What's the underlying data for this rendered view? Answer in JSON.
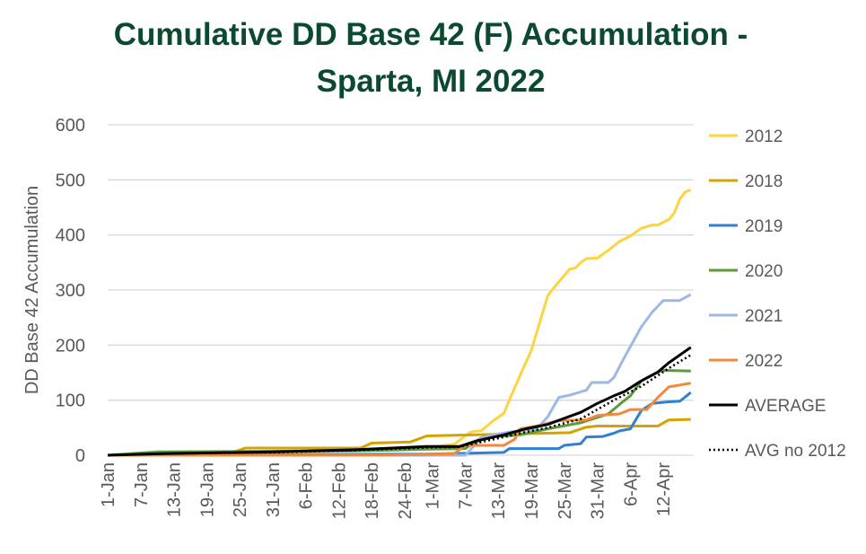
{
  "chart_data": {
    "type": "line",
    "title_lines": [
      "Cumulative DD Base 42 (F) Accumulation -",
      "Sparta, MI 2022"
    ],
    "xlabel": "",
    "ylabel": "DD Base 42 Accumulation",
    "ylim": [
      0,
      600
    ],
    "yticks": [
      "0",
      "100",
      "200",
      "300",
      "400",
      "500",
      "600"
    ],
    "xlim": [
      "1-Jan",
      "17-Apr"
    ],
    "xticks": [
      "1-Jan",
      "7-Jan",
      "13-Jan",
      "19-Jan",
      "25-Jan",
      "31-Jan",
      "6-Feb",
      "12-Feb",
      "18-Feb",
      "24-Feb",
      "1-Mar",
      "7-Mar",
      "13-Mar",
      "19-Mar",
      "25-Mar",
      "31-Mar",
      "6-Apr",
      "12-Apr"
    ],
    "grid": true,
    "legend": "right",
    "series": [
      {
        "name": "2012",
        "color": "#ffd23f",
        "dash": false,
        "points": [
          [
            "1-Jan",
            0
          ],
          [
            "31-Jan",
            5
          ],
          [
            "25-Feb",
            10
          ],
          [
            "5-Mar",
            20
          ],
          [
            "8-Mar",
            42
          ],
          [
            "10-Mar",
            45
          ],
          [
            "12-Mar",
            62
          ],
          [
            "14-Mar",
            76
          ],
          [
            "15-Mar",
            100
          ],
          [
            "17-Mar",
            146
          ],
          [
            "19-Mar",
            190
          ],
          [
            "22-Mar",
            290
          ],
          [
            "24-Mar",
            315
          ],
          [
            "26-Mar",
            338
          ],
          [
            "27-Mar",
            340
          ],
          [
            "28-Mar",
            350
          ],
          [
            "29-Mar",
            357
          ],
          [
            "31-Mar",
            358
          ],
          [
            "2-Apr",
            372
          ],
          [
            "4-Apr",
            388
          ],
          [
            "6-Apr",
            398
          ],
          [
            "8-Apr",
            412
          ],
          [
            "10-Apr",
            418
          ],
          [
            "11-Apr",
            418
          ],
          [
            "13-Apr",
            428
          ],
          [
            "14-Apr",
            440
          ],
          [
            "15-Apr",
            465
          ],
          [
            "16-Apr",
            478
          ],
          [
            "17-Apr",
            482
          ]
        ]
      },
      {
        "name": "2018",
        "color": "#d4a300",
        "dash": false,
        "points": [
          [
            "1-Jan",
            0
          ],
          [
            "8-Jan",
            2
          ],
          [
            "14-Jan",
            5
          ],
          [
            "24-Jan",
            6
          ],
          [
            "26-Jan",
            13
          ],
          [
            "16-Feb",
            13
          ],
          [
            "18-Feb",
            22
          ],
          [
            "25-Feb",
            24
          ],
          [
            "28-Feb",
            35
          ],
          [
            "26-Mar",
            41
          ],
          [
            "29-Mar",
            51
          ],
          [
            "31-Mar",
            53
          ],
          [
            "11-Apr",
            53
          ],
          [
            "13-Apr",
            64
          ],
          [
            "17-Apr",
            65
          ]
        ]
      },
      {
        "name": "2019",
        "color": "#2f80d0",
        "dash": false,
        "points": [
          [
            "1-Jan",
            0
          ],
          [
            "28-Feb",
            2
          ],
          [
            "14-Mar",
            5
          ],
          [
            "15-Mar",
            12
          ],
          [
            "24-Mar",
            12
          ],
          [
            "25-Mar",
            18
          ],
          [
            "28-Mar",
            21
          ],
          [
            "29-Mar",
            33
          ],
          [
            "1-Apr",
            34
          ],
          [
            "3-Apr",
            40
          ],
          [
            "4-Apr",
            44
          ],
          [
            "6-Apr",
            48
          ],
          [
            "8-Apr",
            81
          ],
          [
            "10-Apr",
            94
          ],
          [
            "13-Apr",
            97
          ],
          [
            "15-Apr",
            98
          ],
          [
            "17-Apr",
            114
          ]
        ]
      },
      {
        "name": "2020",
        "color": "#5b9b3b",
        "dash": false,
        "points": [
          [
            "1-Jan",
            0
          ],
          [
            "10-Jan",
            6
          ],
          [
            "15-Feb",
            8
          ],
          [
            "28-Feb",
            11
          ],
          [
            "7-Mar",
            12
          ],
          [
            "10-Mar",
            32
          ],
          [
            "17-Mar",
            37
          ],
          [
            "22-Mar",
            48
          ],
          [
            "28-Mar",
            59
          ],
          [
            "2-Apr",
            75
          ],
          [
            "4-Apr",
            92
          ],
          [
            "6-Apr",
            108
          ],
          [
            "8-Apr",
            135
          ],
          [
            "11-Apr",
            151
          ],
          [
            "12-Apr",
            154
          ],
          [
            "17-Apr",
            153
          ]
        ]
      },
      {
        "name": "2021",
        "color": "#9db8e6",
        "dash": false,
        "points": [
          [
            "1-Jan",
            0
          ],
          [
            "7-Mar",
            0
          ],
          [
            "10-Mar",
            32
          ],
          [
            "12-Mar",
            37
          ],
          [
            "15-Mar",
            42
          ],
          [
            "20-Mar",
            48
          ],
          [
            "22-Mar",
            70
          ],
          [
            "24-Mar",
            105
          ],
          [
            "26-Mar",
            109
          ],
          [
            "29-Mar",
            118
          ],
          [
            "30-Mar",
            132
          ],
          [
            "2-Apr",
            132
          ],
          [
            "3-Apr",
            141
          ],
          [
            "5-Apr",
            179
          ],
          [
            "8-Apr",
            233
          ],
          [
            "10-Apr",
            260
          ],
          [
            "12-Apr",
            281
          ],
          [
            "15-Apr",
            281
          ],
          [
            "17-Apr",
            292
          ]
        ]
      },
      {
        "name": "2022",
        "color": "#f4883a",
        "dash": false,
        "points": [
          [
            "1-Jan",
            0
          ],
          [
            "21-Feb",
            0
          ],
          [
            "5-Mar",
            3
          ],
          [
            "7-Mar",
            18
          ],
          [
            "14-Mar",
            18
          ],
          [
            "16-Mar",
            29
          ],
          [
            "17-Mar",
            48
          ],
          [
            "20-Mar",
            53
          ],
          [
            "24-Mar",
            63
          ],
          [
            "29-Mar",
            64
          ],
          [
            "31-Mar",
            72
          ],
          [
            "4-Apr",
            75
          ],
          [
            "6-Apr",
            83
          ],
          [
            "9-Apr",
            83
          ],
          [
            "11-Apr",
            105
          ],
          [
            "13-Apr",
            124
          ],
          [
            "17-Apr",
            131
          ]
        ]
      },
      {
        "name": "AVERAGE",
        "color": "#000000",
        "dash": false,
        "points": [
          [
            "1-Jan",
            0
          ],
          [
            "11-Jan",
            3
          ],
          [
            "31-Jan",
            6
          ],
          [
            "15-Feb",
            10
          ],
          [
            "28-Feb",
            16
          ],
          [
            "6-Mar",
            16
          ],
          [
            "9-Mar",
            26
          ],
          [
            "14-Mar",
            37
          ],
          [
            "18-Mar",
            48
          ],
          [
            "22-Mar",
            56
          ],
          [
            "25-Mar",
            67
          ],
          [
            "28-Mar",
            78
          ],
          [
            "31-Mar",
            94
          ],
          [
            "3-Apr",
            108
          ],
          [
            "5-Apr",
            116
          ],
          [
            "8-Apr",
            135
          ],
          [
            "11-Apr",
            151
          ],
          [
            "13-Apr",
            168
          ],
          [
            "17-Apr",
            196
          ]
        ]
      },
      {
        "name": "AVG no 2012",
        "color": "#000000",
        "dash": true,
        "points": [
          [
            "1-Jan",
            0
          ],
          [
            "11-Jan",
            3
          ],
          [
            "31-Jan",
            5
          ],
          [
            "15-Feb",
            9
          ],
          [
            "28-Feb",
            14
          ],
          [
            "6-Mar",
            15
          ],
          [
            "9-Mar",
            22
          ],
          [
            "14-Mar",
            33
          ],
          [
            "18-Mar",
            42
          ],
          [
            "22-Mar",
            50
          ],
          [
            "28-Mar",
            66
          ],
          [
            "3-Apr",
            100
          ],
          [
            "8-Apr",
            125
          ],
          [
            "13-Apr",
            158
          ],
          [
            "17-Apr",
            182
          ]
        ]
      }
    ]
  }
}
